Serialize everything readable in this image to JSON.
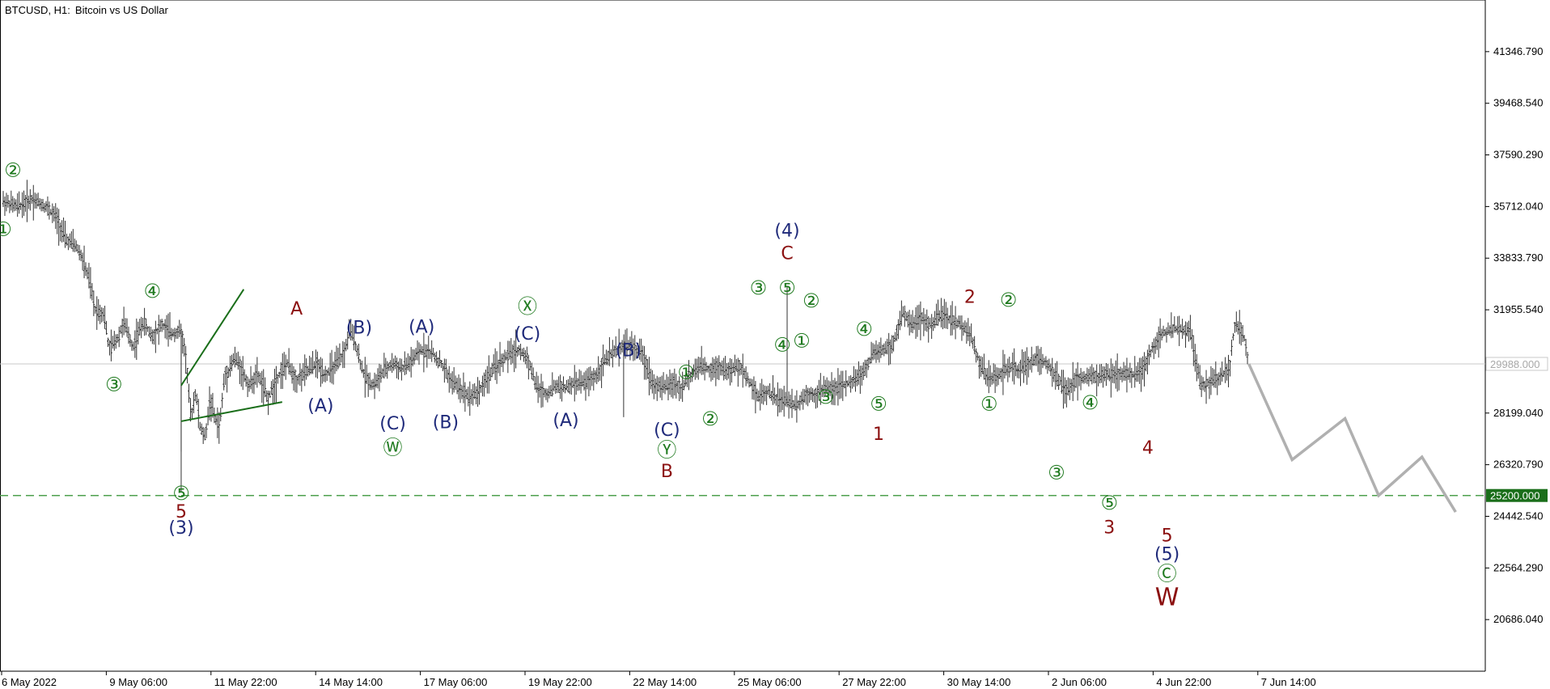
{
  "window": {
    "symbol": "BTCUSD, H1:",
    "description": "Bitcoin vs US Dollar"
  },
  "colors": {
    "green": "#1f7a1f",
    "navy": "#1f2a7a",
    "maroon": "#8b1010",
    "price": "#333333",
    "projection": "#b0b0b0",
    "hline_dashed": "#4ea04e",
    "current_line": "#c8c8c8"
  },
  "chart_data": {
    "type": "ohlc",
    "title": "BTCUSD, H1:  Bitcoin vs US Dollar",
    "ylim": [
      18808,
      43225
    ],
    "y_ticks": [
      "41346.790",
      "39468.540",
      "37590.290",
      "35712.040",
      "33833.790",
      "31955.540",
      "28199.040",
      "26320.790",
      "24442.540",
      "22564.290",
      "20686.040"
    ],
    "x_ticks": [
      "6 May 2022",
      "9 May 06:00",
      "11 May 22:00",
      "14 May 14:00",
      "17 May 06:00",
      "19 May 22:00",
      "22 May 14:00",
      "25 May 06:00",
      "27 May 22:00",
      "30 May 14:00",
      "2 Jun 06:00",
      "4 Jun 22:00",
      "7 Jun 14:00"
    ],
    "current_price": {
      "label": "29988.000",
      "value": 29988
    },
    "support_level": {
      "label": "25200.000",
      "value": 25200
    },
    "price_path": [
      [
        0,
        35900
      ],
      [
        3,
        35700
      ],
      [
        6,
        36000
      ],
      [
        9,
        35700
      ],
      [
        11,
        35300
      ],
      [
        13,
        34500
      ],
      [
        15,
        34300
      ],
      [
        16,
        34000
      ],
      [
        17,
        33500
      ],
      [
        18,
        33000
      ],
      [
        19,
        32000
      ],
      [
        21,
        31800
      ],
      [
        22,
        30500
      ],
      [
        24,
        31000
      ],
      [
        25,
        31500
      ],
      [
        27,
        30600
      ],
      [
        29,
        31500
      ],
      [
        31,
        31000
      ],
      [
        33,
        31400
      ],
      [
        35,
        31100
      ],
      [
        37,
        31200
      ],
      [
        38,
        30200
      ],
      [
        39,
        28000
      ],
      [
        40,
        29000
      ],
      [
        41,
        27600
      ],
      [
        42,
        27300
      ],
      [
        43,
        28700
      ],
      [
        44,
        28000
      ],
      [
        45,
        27700
      ],
      [
        46,
        29500
      ],
      [
        47,
        29800
      ],
      [
        48,
        30200
      ],
      [
        49,
        30000
      ],
      [
        51,
        29200
      ],
      [
        53,
        29600
      ],
      [
        55,
        28700
      ],
      [
        57,
        29500
      ],
      [
        59,
        30000
      ],
      [
        61,
        29400
      ],
      [
        63,
        29700
      ],
      [
        65,
        30000
      ],
      [
        67,
        29600
      ],
      [
        69,
        29900
      ],
      [
        71,
        30400
      ],
      [
        72,
        31200
      ],
      [
        73,
        30900
      ],
      [
        74,
        30200
      ],
      [
        75,
        29600
      ],
      [
        77,
        29200
      ],
      [
        79,
        29700
      ],
      [
        81,
        30000
      ],
      [
        83,
        29800
      ],
      [
        85,
        30100
      ],
      [
        87,
        30500
      ],
      [
        89,
        30400
      ],
      [
        91,
        30000
      ],
      [
        93,
        29400
      ],
      [
        95,
        29100
      ],
      [
        97,
        28800
      ],
      [
        99,
        29000
      ],
      [
        101,
        29600
      ],
      [
        103,
        30000
      ],
      [
        105,
        30300
      ],
      [
        107,
        30500
      ],
      [
        109,
        30200
      ],
      [
        111,
        29100
      ],
      [
        113,
        28900
      ],
      [
        115,
        29200
      ],
      [
        117,
        29100
      ],
      [
        119,
        29300
      ],
      [
        121,
        29300
      ],
      [
        123,
        29500
      ],
      [
        125,
        30100
      ],
      [
        127,
        30400
      ],
      [
        129,
        30700
      ],
      [
        131,
        30600
      ],
      [
        133,
        30300
      ],
      [
        135,
        29300
      ],
      [
        137,
        29100
      ],
      [
        139,
        29300
      ],
      [
        141,
        29100
      ],
      [
        143,
        29600
      ],
      [
        145,
        29900
      ],
      [
        147,
        29800
      ],
      [
        149,
        29900
      ],
      [
        151,
        29700
      ],
      [
        153,
        29900
      ],
      [
        155,
        29400
      ],
      [
        157,
        28800
      ],
      [
        159,
        29000
      ],
      [
        161,
        28700
      ],
      [
        163,
        28600
      ],
      [
        165,
        28500
      ],
      [
        167,
        28900
      ],
      [
        169,
        28900
      ],
      [
        171,
        29100
      ],
      [
        173,
        29100
      ],
      [
        175,
        29200
      ],
      [
        177,
        29400
      ],
      [
        179,
        29700
      ],
      [
        181,
        30400
      ],
      [
        183,
        30500
      ],
      [
        185,
        30700
      ],
      [
        187,
        31800
      ],
      [
        189,
        31500
      ],
      [
        191,
        31600
      ],
      [
        193,
        31400
      ],
      [
        195,
        31800
      ],
      [
        197,
        31600
      ],
      [
        199,
        31400
      ],
      [
        201,
        31100
      ],
      [
        203,
        30000
      ],
      [
        205,
        29400
      ],
      [
        207,
        29600
      ],
      [
        209,
        29800
      ],
      [
        211,
        29800
      ],
      [
        213,
        30000
      ],
      [
        215,
        30200
      ],
      [
        217,
        30000
      ],
      [
        219,
        29500
      ],
      [
        221,
        29000
      ],
      [
        223,
        29400
      ],
      [
        225,
        29500
      ],
      [
        227,
        29500
      ],
      [
        229,
        29600
      ],
      [
        231,
        29600
      ],
      [
        233,
        29600
      ],
      [
        235,
        29600
      ],
      [
        237,
        29800
      ],
      [
        239,
        30600
      ],
      [
        241,
        31100
      ],
      [
        243,
        31300
      ],
      [
        245,
        31200
      ],
      [
        247,
        31100
      ],
      [
        248,
        30000
      ],
      [
        249,
        29200
      ],
      [
        251,
        29300
      ],
      [
        253,
        29500
      ],
      [
        255,
        29800
      ],
      [
        256,
        31400
      ],
      [
        257,
        31300
      ],
      [
        258,
        31000
      ],
      [
        259,
        29988
      ]
    ],
    "projection_path": [
      [
        259,
        29988
      ],
      [
        268,
        26500
      ],
      [
        279,
        28000
      ],
      [
        286,
        25200
      ],
      [
        295,
        26600
      ],
      [
        302,
        24600
      ]
    ],
    "support_trendlines": [
      {
        "from": [
          37,
          27900
        ],
        "to": [
          58,
          28600
        ]
      },
      {
        "from": [
          37,
          29200
        ],
        "to": [
          50,
          32700
        ]
      }
    ],
    "wave_labels": [
      {
        "text": "②",
        "style": "circle",
        "color": "green",
        "x": 2,
        "y": 37000
      },
      {
        "text": "①",
        "style": "circle",
        "color": "green",
        "x": 0,
        "y": 34850
      },
      {
        "text": "④",
        "style": "circle",
        "color": "green",
        "x": 31,
        "y": 32600
      },
      {
        "text": "③",
        "style": "circle",
        "color": "green",
        "x": 23,
        "y": 29200
      },
      {
        "text": "⑤",
        "style": "circle",
        "color": "green",
        "x": 37,
        "y": 25250
      },
      {
        "text": "5",
        "style": "plain",
        "color": "maroon",
        "x": 37,
        "y": 24580
      },
      {
        "text": "(3)",
        "style": "paren",
        "color": "navy",
        "x": 37,
        "y": 23980
      },
      {
        "text": "A",
        "style": "plain",
        "color": "maroon",
        "x": 61,
        "y": 31960
      },
      {
        "text": "(A)",
        "style": "paren",
        "color": "navy",
        "x": 66,
        "y": 28430
      },
      {
        "text": "(B)",
        "style": "paren",
        "color": "navy",
        "x": 74,
        "y": 31260
      },
      {
        "text": "(C)",
        "style": "paren",
        "color": "navy",
        "x": 81,
        "y": 27780
      },
      {
        "text": "Ⓦ",
        "style": "circle",
        "color": "green",
        "x": 81,
        "y": 26920
      },
      {
        "text": "(A)",
        "style": "paren",
        "color": "navy",
        "x": 87,
        "y": 31300
      },
      {
        "text": "(B)",
        "style": "paren",
        "color": "navy",
        "x": 92,
        "y": 27830
      },
      {
        "text": "Ⓧ",
        "style": "circle",
        "color": "green",
        "x": 109,
        "y": 32050
      },
      {
        "text": "(C)",
        "style": "paren",
        "color": "navy",
        "x": 109,
        "y": 31050
      },
      {
        "text": "(A)",
        "style": "paren",
        "color": "navy",
        "x": 117,
        "y": 27900
      },
      {
        "text": "(B)",
        "style": "paren",
        "color": "navy",
        "x": 130,
        "y": 30440
      },
      {
        "text": "(C)",
        "style": "paren",
        "color": "navy",
        "x": 138,
        "y": 27550
      },
      {
        "text": "Ⓨ",
        "style": "circle",
        "color": "green",
        "x": 138,
        "y": 26830
      },
      {
        "text": "B",
        "style": "plain",
        "color": "maroon",
        "x": 138,
        "y": 26050
      },
      {
        "text": "①",
        "style": "circle",
        "color": "green",
        "x": 142,
        "y": 29650
      },
      {
        "text": "②",
        "style": "circle",
        "color": "green",
        "x": 147,
        "y": 27960
      },
      {
        "text": "(4)",
        "style": "paren",
        "color": "navy",
        "x": 163,
        "y": 34800
      },
      {
        "text": "C",
        "style": "plain",
        "color": "maroon",
        "x": 163,
        "y": 33980
      },
      {
        "text": "③",
        "style": "circle",
        "color": "green",
        "x": 157,
        "y": 32730
      },
      {
        "text": "⑤",
        "style": "circle",
        "color": "green",
        "x": 163,
        "y": 32730
      },
      {
        "text": "②",
        "style": "circle",
        "color": "green",
        "x": 168,
        "y": 32250
      },
      {
        "text": "④",
        "style": "circle",
        "color": "green",
        "x": 162,
        "y": 30650
      },
      {
        "text": "①",
        "style": "circle",
        "color": "green",
        "x": 166,
        "y": 30800
      },
      {
        "text": "③",
        "style": "circle",
        "color": "green",
        "x": 171,
        "y": 28750
      },
      {
        "text": "④",
        "style": "circle",
        "color": "green",
        "x": 179,
        "y": 31220
      },
      {
        "text": "⑤",
        "style": "circle",
        "color": "green",
        "x": 182,
        "y": 28500
      },
      {
        "text": "1",
        "style": "plain",
        "color": "maroon",
        "x": 182,
        "y": 27400
      },
      {
        "text": "2",
        "style": "plain",
        "color": "maroon",
        "x": 201,
        "y": 32380
      },
      {
        "text": "②",
        "style": "circle",
        "color": "green",
        "x": 209,
        "y": 32280
      },
      {
        "text": "①",
        "style": "circle",
        "color": "green",
        "x": 205,
        "y": 28500
      },
      {
        "text": "③",
        "style": "circle",
        "color": "green",
        "x": 219,
        "y": 26000
      },
      {
        "text": "④",
        "style": "circle",
        "color": "green",
        "x": 226,
        "y": 28550
      },
      {
        "text": "⑤",
        "style": "circle",
        "color": "green",
        "x": 230,
        "y": 24900
      },
      {
        "text": "3",
        "style": "plain",
        "color": "maroon",
        "x": 230,
        "y": 24000
      },
      {
        "text": "4",
        "style": "plain",
        "color": "maroon",
        "x": 238,
        "y": 26900
      },
      {
        "text": "5",
        "style": "plain",
        "color": "maroon",
        "x": 242,
        "y": 23700
      },
      {
        "text": "(5)",
        "style": "paren",
        "color": "navy",
        "x": 242,
        "y": 23030
      },
      {
        "text": "Ⓒ",
        "style": "circle",
        "color": "green",
        "x": 242,
        "y": 22330
      },
      {
        "text": "W",
        "style": "plain",
        "color": "maroon",
        "x": 242,
        "y": 21450
      }
    ]
  }
}
